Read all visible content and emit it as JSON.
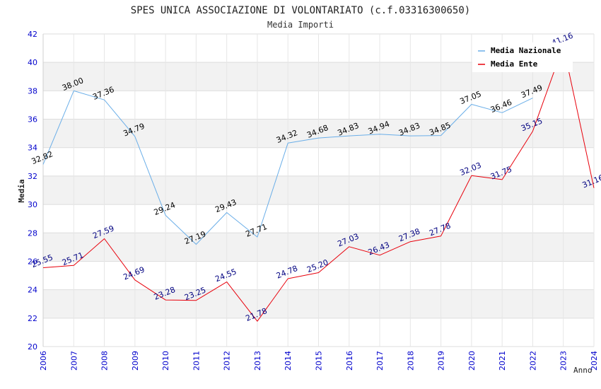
{
  "chart_data": {
    "type": "line",
    "title": "SPES UNICA ASSOCIAZIONE DI VOLONTARIATO (c.f.03316300650)",
    "subtitle": "Media Importi",
    "xlabel": "Anno",
    "ylabel": "Media",
    "ylim": [
      20,
      42
    ],
    "yticks": [
      "20",
      "22",
      "24",
      "26",
      "28",
      "30",
      "32",
      "34",
      "36",
      "38",
      "40",
      "42"
    ],
    "x": [
      "2006",
      "2007",
      "2008",
      "2009",
      "2010",
      "2011",
      "2012",
      "2013",
      "2014",
      "2015",
      "2016",
      "2017",
      "2018",
      "2019",
      "2020",
      "2021",
      "2022",
      "2023",
      "2024"
    ],
    "grid": true,
    "legend_position": "top-right",
    "series": [
      {
        "name": "Media Nazionale",
        "color": "#6aaee8",
        "label_color": "#000000",
        "values": [
          32.82,
          38.0,
          37.36,
          34.79,
          29.24,
          27.19,
          29.43,
          27.71,
          34.32,
          34.68,
          34.83,
          34.94,
          34.83,
          34.85,
          37.05,
          36.46,
          37.49,
          null,
          null
        ],
        "labels": [
          "32.82",
          "38.00",
          "37.36",
          "34.79",
          "29.24",
          "27.19",
          "29.43",
          "27.71",
          "34.32",
          "34.68",
          "34.83",
          "34.94",
          "34.83",
          "34.85",
          "37.05",
          "36.46",
          "37.49",
          "",
          ""
        ]
      },
      {
        "name": "Media Ente",
        "color": "#e8000b",
        "label_color": "#000080",
        "values": [
          25.55,
          25.71,
          27.59,
          24.69,
          23.28,
          23.25,
          24.55,
          21.78,
          24.78,
          25.2,
          27.03,
          26.43,
          27.38,
          27.78,
          32.03,
          31.75,
          35.15,
          41.16,
          31.16
        ],
        "labels": [
          "25.55",
          "25.71",
          "27.59",
          "24.69",
          "23.28",
          "23.25",
          "24.55",
          "21.78",
          "24.78",
          "25.20",
          "27.03",
          "26.43",
          "27.38",
          "27.78",
          "32.03",
          "31.75",
          "35.15",
          "41.16",
          "31.16"
        ]
      }
    ]
  }
}
